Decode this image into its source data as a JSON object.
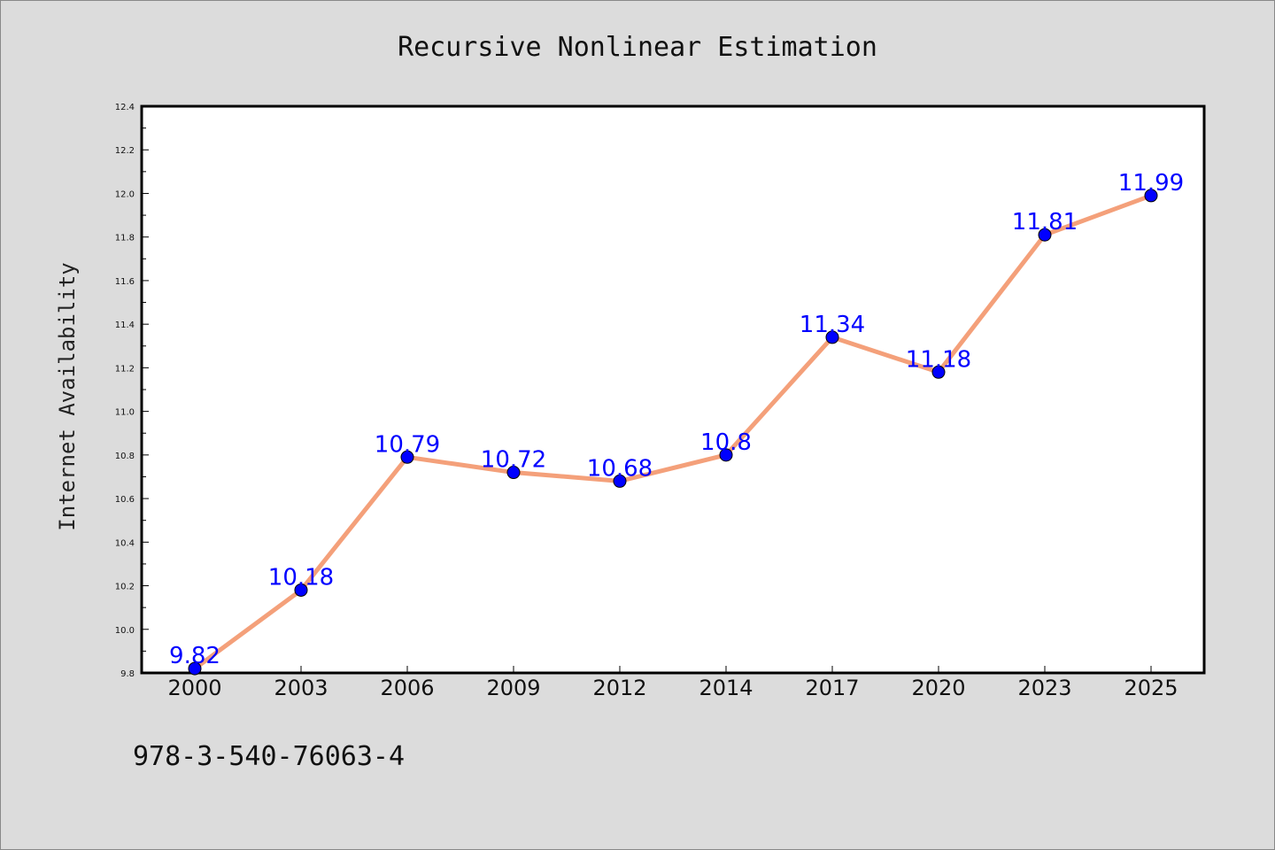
{
  "chart_data": {
    "type": "line",
    "title": "Recursive Nonlinear Estimation",
    "xlabel": "",
    "ylabel": "Internet Availability",
    "categories": [
      "2000",
      "2003",
      "2006",
      "2009",
      "2012",
      "2014",
      "2017",
      "2020",
      "2023",
      "2025"
    ],
    "series": [
      {
        "values": [
          9.82,
          10.18,
          10.79,
          10.72,
          10.68,
          10.8,
          11.34,
          11.18,
          11.81,
          11.99
        ],
        "data_labels": [
          "9.82",
          "10.18",
          "10.79",
          "10.72",
          "10.68",
          "10.8",
          "11.34",
          "11.18",
          "11.81",
          "11.99"
        ],
        "line_color": "#f4a07a",
        "marker_color": "#0000ff"
      }
    ],
    "ylim": [
      9.8,
      12.4
    ],
    "yticks": [
      "9.8",
      "10.0",
      "10.2",
      "10.4",
      "10.6",
      "10.8",
      "11.0",
      "11.2",
      "11.4",
      "11.6",
      "11.8",
      "12.0",
      "12.2",
      "12.4"
    ],
    "grid": false,
    "legend": "none"
  },
  "footer_text": "978-3-540-76063-4",
  "colors": {
    "background": "#dcdcdc",
    "plot_background": "#ffffff",
    "label_color": "#0000ff"
  }
}
